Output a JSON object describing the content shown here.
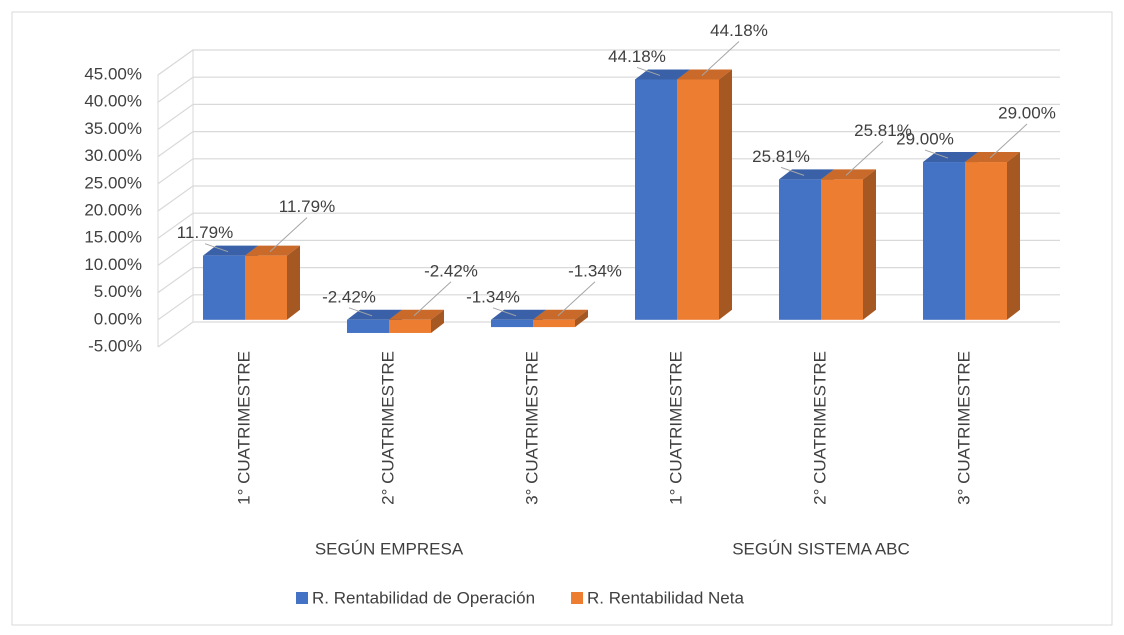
{
  "chart_data": {
    "type": "bar3d",
    "groups": [
      "SEGÚN EMPRESA",
      "SEGÚN SISTEMA ABC"
    ],
    "categories": [
      "1° CUATRIMESTRE",
      "2° CUATRIMESTRE",
      "3° CUATRIMESTRE",
      "1° CUATRIMESTRE",
      "2° CUATRIMESTRE",
      "3° CUATRIMESTRE"
    ],
    "series": [
      {
        "name": "R. Rentabilidad de Operación",
        "color": "#4472c4",
        "values": [
          11.79,
          -2.42,
          -1.34,
          44.18,
          25.81,
          29.0
        ],
        "value_labels": [
          "11.79%",
          "-2.42%",
          "-1.34%",
          "44.18%",
          "25.81%",
          "29.00%"
        ]
      },
      {
        "name": "R. Rentabilidad Neta",
        "color": "#ed7d31",
        "values": [
          11.79,
          -2.42,
          -1.34,
          44.18,
          25.81,
          29.0
        ],
        "value_labels": [
          "11.79%",
          "-2.42%",
          "-1.34%",
          "44.18%",
          "25.81%",
          "29.00%"
        ]
      }
    ],
    "ylim": [
      -5,
      45
    ],
    "yticks": [
      {
        "value": -5,
        "label": "-5.00%"
      },
      {
        "value": 0,
        "label": "0.00%"
      },
      {
        "value": 5,
        "label": "5.00%"
      },
      {
        "value": 10,
        "label": "10.00%"
      },
      {
        "value": 15,
        "label": "15.00%"
      },
      {
        "value": 20,
        "label": "20.00%"
      },
      {
        "value": 25,
        "label": "25.00%"
      },
      {
        "value": 30,
        "label": "30.00%"
      },
      {
        "value": 35,
        "label": "35.00%"
      },
      {
        "value": 40,
        "label": "40.00%"
      },
      {
        "value": 45,
        "label": "45.00%"
      }
    ],
    "grid": true,
    "legend": "bottom"
  }
}
